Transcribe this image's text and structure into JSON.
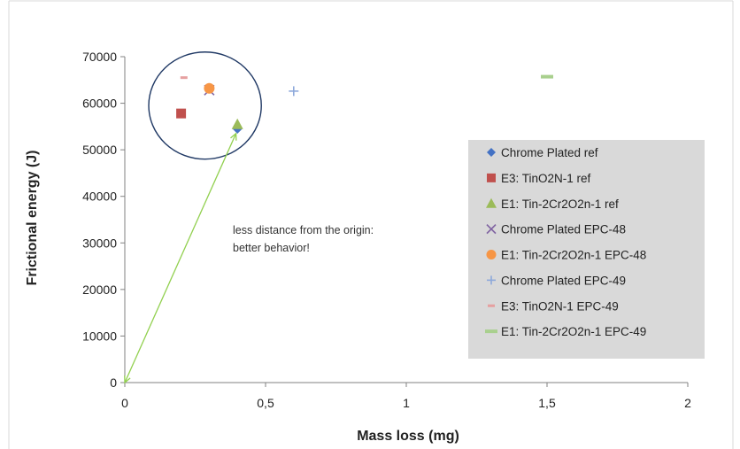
{
  "chart_data": {
    "type": "scatter",
    "xlabel": "Mass loss (mg)",
    "ylabel": "Frictional energy (J)",
    "xlim": [
      0,
      2
    ],
    "ylim": [
      0,
      70000
    ],
    "x_ticks": [
      "0",
      "0,5",
      "1",
      "1,5",
      "2"
    ],
    "x_tick_values": [
      0,
      0.5,
      1,
      1.5,
      2
    ],
    "y_ticks": [
      "0",
      "10000",
      "20000",
      "30000",
      "40000",
      "50000",
      "60000",
      "70000"
    ],
    "y_tick_values": [
      0,
      10000,
      20000,
      30000,
      40000,
      50000,
      60000,
      70000
    ],
    "grid": false,
    "legend_position": "right",
    "series": [
      {
        "name": "Chrome Plated ref",
        "marker": "diamond",
        "color": "#4472C4",
        "points": [
          {
            "x": 0.4,
            "y": 54500
          }
        ]
      },
      {
        "name": "E3: TinO2N-1 ref",
        "marker": "square",
        "color": "#C0504D",
        "points": [
          {
            "x": 0.2,
            "y": 57800
          }
        ]
      },
      {
        "name": "E1: Tin-2Cr2O2n-1 ref",
        "marker": "triangle",
        "color": "#9BBB59",
        "points": [
          {
            "x": 0.4,
            "y": 55500
          }
        ]
      },
      {
        "name": "Chrome Plated EPC-48",
        "marker": "x",
        "color": "#8064A2",
        "points": [
          {
            "x": 0.3,
            "y": 62800
          }
        ]
      },
      {
        "name": "E1: Tin-2Cr2O2n-1 EPC-48",
        "marker": "circle",
        "color": "#F79646",
        "points": [
          {
            "x": 0.3,
            "y": 63200
          }
        ]
      },
      {
        "name": "Chrome Plated EPC-49",
        "marker": "plus",
        "color": "#8EA9DB",
        "points": [
          {
            "x": 0.6,
            "y": 62600
          }
        ]
      },
      {
        "name": "E3: TinO2N-1 EPC-49",
        "marker": "dash-short",
        "color": "#E6A0A0",
        "points": [
          {
            "x": 0.21,
            "y": 65500
          }
        ]
      },
      {
        "name": "E1: Tin-2Cr2O2n-1 EPC-49",
        "marker": "dash-long",
        "color": "#A9D08E",
        "points": [
          {
            "x": 1.5,
            "y": 65700
          }
        ]
      }
    ],
    "annotations": [
      {
        "text_lines": [
          "less distance from the origin:",
          "better behavior!"
        ]
      }
    ],
    "highlight_ellipse": {
      "cx": 0.285,
      "cy": 59500,
      "rx": 0.2,
      "ry": 11500,
      "color": "#1F3864"
    },
    "arrow": {
      "from": [
        0.395,
        53500
      ],
      "to": [
        0.0,
        0
      ],
      "color": "#92D050"
    }
  }
}
